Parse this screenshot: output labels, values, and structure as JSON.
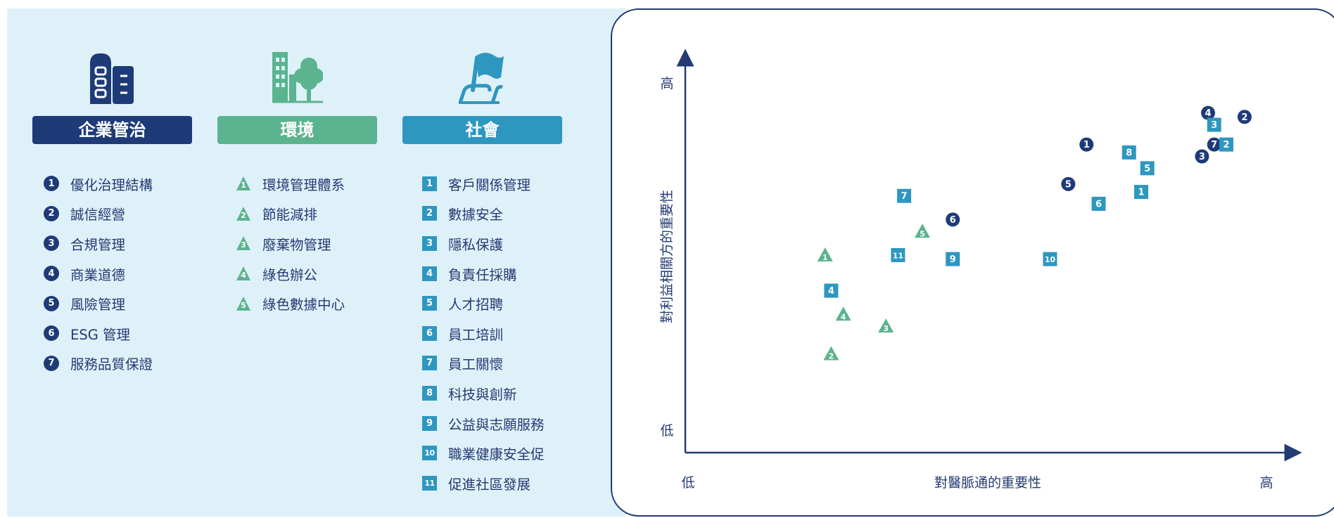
{
  "colors": {
    "governance": "#1e3b78",
    "environment": "#5bb48f",
    "social": "#2e97c0",
    "panel_bg": "#dff1f8",
    "axis": "#243a73"
  },
  "categories": {
    "governance": {
      "icon": "office-building-icon",
      "title": "企業管治",
      "items": [
        {
          "num": "1",
          "label": "優化治理結構"
        },
        {
          "num": "2",
          "label": "誠信經營"
        },
        {
          "num": "3",
          "label": "合規管理"
        },
        {
          "num": "4",
          "label": "商業道德"
        },
        {
          "num": "5",
          "label": "風險管理"
        },
        {
          "num": "6",
          "label": "ESG 管理"
        },
        {
          "num": "7",
          "label": "服務品質保證"
        }
      ]
    },
    "environment": {
      "icon": "building-with-tree-icon",
      "title": "環境",
      "items": [
        {
          "num": "1",
          "label": "環境管理體系"
        },
        {
          "num": "2",
          "label": "節能減排"
        },
        {
          "num": "3",
          "label": "廢棄物管理"
        },
        {
          "num": "4",
          "label": "綠色辦公"
        },
        {
          "num": "5",
          "label": "綠色數據中心"
        }
      ]
    },
    "social": {
      "icon": "hand-holding-flag-icon",
      "title": "社會",
      "items": [
        {
          "num": "1",
          "label": "客戶關係管理"
        },
        {
          "num": "2",
          "label": "數據安全"
        },
        {
          "num": "3",
          "label": "隱私保護"
        },
        {
          "num": "4",
          "label": "負責任採購"
        },
        {
          "num": "5",
          "label": "人才招聘"
        },
        {
          "num": "6",
          "label": "員工培訓"
        },
        {
          "num": "7",
          "label": "員工關懷"
        },
        {
          "num": "8",
          "label": "科技與創新"
        },
        {
          "num": "9",
          "label": "公益與志願服務"
        },
        {
          "num": "10",
          "label": "職業健康安全促"
        },
        {
          "num": "11",
          "label": "促進社區發展"
        }
      ]
    }
  },
  "chart_data": {
    "type": "scatter",
    "xlabel": "對醫脈通的重要性",
    "ylabel": "對利益相關方的重要性",
    "x_low": "低",
    "x_high": "高",
    "y_low": "低",
    "y_high": "高",
    "xlim": [
      0,
      100
    ],
    "ylim": [
      0,
      100
    ],
    "grid": false,
    "series": [
      {
        "category": "governance",
        "marker": "circle",
        "points": [
          {
            "label": "1",
            "x": 66,
            "y": 78
          },
          {
            "label": "2",
            "x": 92,
            "y": 85
          },
          {
            "label": "3",
            "x": 85,
            "y": 75
          },
          {
            "label": "4",
            "x": 86,
            "y": 86
          },
          {
            "label": "5",
            "x": 63,
            "y": 68
          },
          {
            "label": "6",
            "x": 44,
            "y": 59
          },
          {
            "label": "7",
            "x": 87,
            "y": 78
          }
        ]
      },
      {
        "category": "environment",
        "marker": "triangle",
        "points": [
          {
            "label": "1",
            "x": 23,
            "y": 50
          },
          {
            "label": "2",
            "x": 24,
            "y": 25
          },
          {
            "label": "3",
            "x": 33,
            "y": 32
          },
          {
            "label": "4",
            "x": 26,
            "y": 35
          },
          {
            "label": "5",
            "x": 39,
            "y": 56
          }
        ]
      },
      {
        "category": "social",
        "marker": "square",
        "points": [
          {
            "label": "1",
            "x": 75,
            "y": 66
          },
          {
            "label": "2",
            "x": 89,
            "y": 78
          },
          {
            "label": "3",
            "x": 87,
            "y": 83
          },
          {
            "label": "4",
            "x": 24,
            "y": 41
          },
          {
            "label": "5",
            "x": 76,
            "y": 72
          },
          {
            "label": "6",
            "x": 68,
            "y": 63
          },
          {
            "label": "7",
            "x": 36,
            "y": 65
          },
          {
            "label": "8",
            "x": 73,
            "y": 76
          },
          {
            "label": "9",
            "x": 44,
            "y": 49
          },
          {
            "label": "10",
            "x": 60,
            "y": 49
          },
          {
            "label": "11",
            "x": 35,
            "y": 50
          }
        ]
      }
    ]
  }
}
